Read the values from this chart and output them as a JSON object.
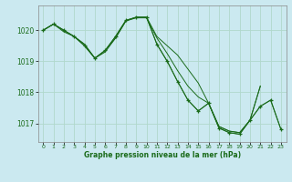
{
  "title": "Graphe pression niveau de la mer (hPa)",
  "bg_color": "#cbe9f0",
  "grid_color": "#b0d8cc",
  "line_color": "#1a6b1a",
  "marker_color": "#1a6b1a",
  "ylim": [
    1016.4,
    1020.8
  ],
  "yticks": [
    1017,
    1018,
    1019,
    1020
  ],
  "xlim": [
    -0.5,
    23.5
  ],
  "xticks": [
    0,
    1,
    2,
    3,
    4,
    5,
    6,
    7,
    8,
    9,
    10,
    11,
    12,
    13,
    14,
    15,
    16,
    17,
    18,
    19,
    20,
    21,
    22,
    23
  ],
  "series1": {
    "x": [
      0,
      1,
      2,
      3,
      4,
      5,
      6,
      7,
      8,
      9,
      10,
      11,
      12,
      13,
      14,
      15,
      16,
      17,
      18,
      19,
      20,
      21
    ],
    "y": [
      1020.0,
      1020.2,
      1019.95,
      1019.8,
      1019.55,
      1019.1,
      1019.35,
      1019.75,
      1020.3,
      1020.42,
      1020.42,
      1019.8,
      1019.5,
      1019.2,
      1018.75,
      1018.3,
      1017.65,
      1016.9,
      1016.75,
      1016.7,
      1017.1,
      1018.2
    ]
  },
  "series2": {
    "x": [
      0,
      1,
      2,
      3,
      4,
      5,
      6,
      7,
      8,
      9,
      10,
      11,
      12,
      13,
      14,
      15,
      16,
      17,
      18,
      19,
      20,
      21,
      22,
      23
    ],
    "y": [
      1020.0,
      1020.2,
      1020.0,
      1019.8,
      1019.5,
      1019.1,
      1019.35,
      1019.8,
      1020.32,
      1020.42,
      1020.42,
      1019.55,
      1019.0,
      1018.35,
      1017.75,
      1017.4,
      1017.65,
      1016.85,
      1016.7,
      1016.65,
      1017.1,
      1017.55,
      1017.75,
      1016.8
    ]
  },
  "series3": {
    "x": [
      0,
      1,
      2,
      3,
      4,
      5,
      6,
      7,
      8,
      9,
      10,
      11,
      12,
      13,
      14,
      15,
      16,
      17,
      18,
      19,
      20,
      21
    ],
    "y": [
      1020.0,
      1020.2,
      1020.0,
      1019.8,
      1019.55,
      1019.1,
      1019.3,
      1019.75,
      1020.3,
      1020.4,
      1020.4,
      1019.75,
      1019.25,
      1018.7,
      1018.2,
      1017.85,
      1017.65,
      1016.9,
      1016.75,
      1016.7,
      1017.1,
      1018.2
    ]
  },
  "series_marker": {
    "x": [
      0,
      1,
      2,
      3,
      4,
      5,
      6,
      7,
      8,
      9,
      10,
      11,
      12,
      13,
      14,
      15,
      16,
      17,
      18,
      19,
      20,
      21,
      22,
      23
    ],
    "y": [
      1020.0,
      1020.2,
      1020.0,
      1019.8,
      1019.5,
      1019.1,
      1019.35,
      1019.8,
      1020.32,
      1020.42,
      1020.42,
      1019.55,
      1019.0,
      1018.35,
      1017.75,
      1017.4,
      1017.65,
      1016.85,
      1016.7,
      1016.65,
      1017.1,
      1017.55,
      1017.75,
      1016.8
    ]
  }
}
